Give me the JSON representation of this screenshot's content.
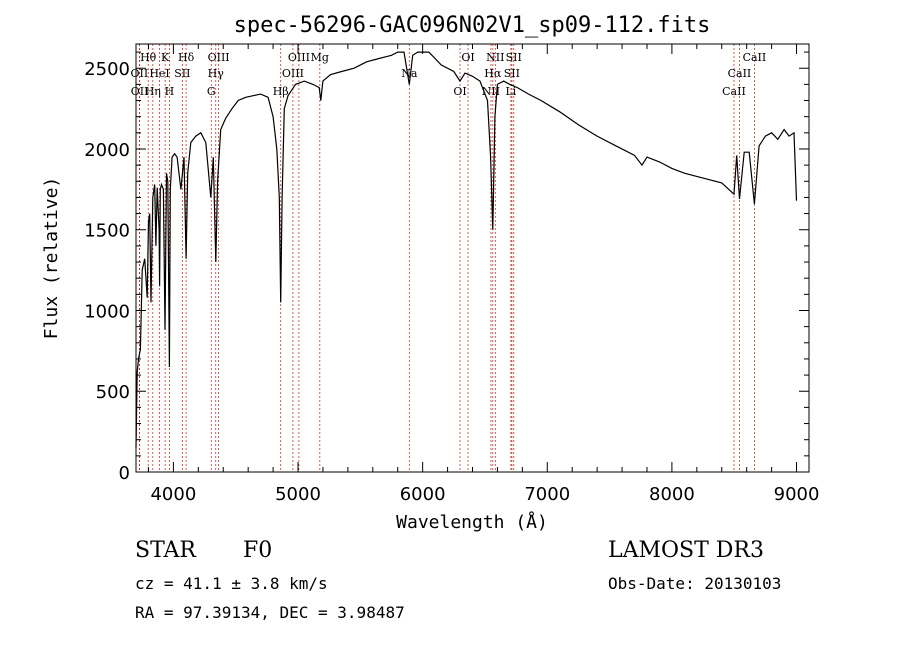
{
  "chart_data": {
    "type": "line",
    "title": "spec-56296-GAC096N02V1_sp09-112.fits",
    "xlabel": "Wavelength (Å)",
    "ylabel": "Flux (relative)",
    "xlim": [
      3700,
      9100
    ],
    "ylim": [
      0,
      2650
    ],
    "xticks": [
      4000,
      5000,
      6000,
      7000,
      8000,
      9000
    ],
    "yticks": [
      0,
      500,
      1000,
      1500,
      2000,
      2500
    ],
    "xtick_labels": [
      "4000",
      "5000",
      "6000",
      "7000",
      "8000",
      "9000"
    ],
    "ytick_labels": [
      "0",
      "500",
      "1000",
      "1500",
      "2000",
      "2500"
    ],
    "grid": false,
    "series": [
      {
        "name": "flux",
        "x": [
          3700,
          3710,
          3720,
          3735,
          3750,
          3770,
          3790,
          3800,
          3810,
          3820,
          3835,
          3850,
          3860,
          3870,
          3885,
          3889,
          3895,
          3905,
          3920,
          3933,
          3945,
          3955,
          3968,
          3975,
          3990,
          4010,
          4030,
          4060,
          4085,
          4102,
          4115,
          4140,
          4180,
          4220,
          4260,
          4300,
          4320,
          4340,
          4355,
          4380,
          4420,
          4470,
          4520,
          4580,
          4640,
          4700,
          4760,
          4800,
          4830,
          4850,
          4861,
          4872,
          4890,
          4920,
          4980,
          5050,
          5120,
          5170,
          5183,
          5200,
          5260,
          5350,
          5450,
          5550,
          5650,
          5750,
          5800,
          5850,
          5893,
          5920,
          5960,
          6050,
          6150,
          6250,
          6300,
          6340,
          6400,
          6460,
          6520,
          6545,
          6563,
          6580,
          6600,
          6650,
          6700,
          6760,
          6850,
          6950,
          7100,
          7250,
          7400,
          7550,
          7700,
          7760,
          7800,
          7900,
          8000,
          8100,
          8200,
          8300,
          8400,
          8498,
          8520,
          8542,
          8580,
          8620,
          8662,
          8700,
          8750,
          8800,
          8850,
          8900,
          8940,
          8980,
          9000
        ],
        "y": [
          150,
          620,
          700,
          760,
          1250,
          1320,
          1080,
          1550,
          1600,
          1050,
          1700,
          1780,
          1400,
          1760,
          1500,
          1150,
          1750,
          1780,
          1750,
          880,
          1850,
          1800,
          650,
          1750,
          1950,
          1970,
          1950,
          1750,
          1950,
          1320,
          1850,
          2040,
          2080,
          2100,
          2040,
          1700,
          1950,
          1300,
          1800,
          2120,
          2190,
          2250,
          2300,
          2320,
          2330,
          2340,
          2320,
          2200,
          2000,
          1700,
          1050,
          1700,
          2250,
          2330,
          2400,
          2420,
          2400,
          2380,
          2300,
          2420,
          2460,
          2480,
          2500,
          2540,
          2560,
          2580,
          2600,
          2600,
          2400,
          2580,
          2600,
          2600,
          2520,
          2480,
          2420,
          2470,
          2450,
          2420,
          2300,
          1950,
          1500,
          2200,
          2400,
          2420,
          2400,
          2380,
          2340,
          2300,
          2230,
          2150,
          2080,
          2020,
          1960,
          1900,
          1950,
          1920,
          1880,
          1850,
          1830,
          1810,
          1790,
          1720,
          1960,
          1690,
          1980,
          1980,
          1660,
          2020,
          2080,
          2100,
          2060,
          2120,
          2080,
          2100,
          1680
        ]
      }
    ],
    "line_markers": [
      {
        "label": "Hθ",
        "x": 3798
      },
      {
        "label": "OII",
        "x": 3727
      },
      {
        "label": "OII",
        "x": 3729
      },
      {
        "label": "K",
        "x": 3934
      },
      {
        "label": "HeI",
        "x": 3889
      },
      {
        "label": "Hη",
        "x": 3835
      },
      {
        "label": "Hδ",
        "x": 4102
      },
      {
        "label": "SII",
        "x": 4072
      },
      {
        "label": "H",
        "x": 3968
      },
      {
        "label": "OIII",
        "x": 4363
      },
      {
        "label": "Hγ",
        "x": 4340
      },
      {
        "label": "G",
        "x": 4304
      },
      {
        "label": "OIII",
        "x": 5007
      },
      {
        "label": "OIII",
        "x": 4959
      },
      {
        "label": "Hβ",
        "x": 4861
      },
      {
        "label": "Mg",
        "x": 5175
      },
      {
        "label": "Na",
        "x": 5893
      },
      {
        "label": "OI",
        "x": 6300
      },
      {
        "label": "OI",
        "x": 6364
      },
      {
        "label": "Hα",
        "x": 6563
      },
      {
        "label": "NII",
        "x": 6548
      },
      {
        "label": "NII",
        "x": 6583
      },
      {
        "label": "SII",
        "x": 6716
      },
      {
        "label": "Li",
        "x": 6708
      },
      {
        "label": "SII",
        "x": 6731
      },
      {
        "label": "CaII",
        "x": 8542
      },
      {
        "label": "CaII",
        "x": 8498
      },
      {
        "label": "CaII",
        "x": 8662
      }
    ]
  },
  "footer": {
    "object_class": "STAR",
    "subclass": "F0",
    "survey": "LAMOST DR3",
    "redshift": "cz = 41.1 ± 3.8 km/s",
    "obs_date": "Obs-Date: 20130103",
    "coordinates": "RA =  97.39134, DEC =   3.98487"
  }
}
